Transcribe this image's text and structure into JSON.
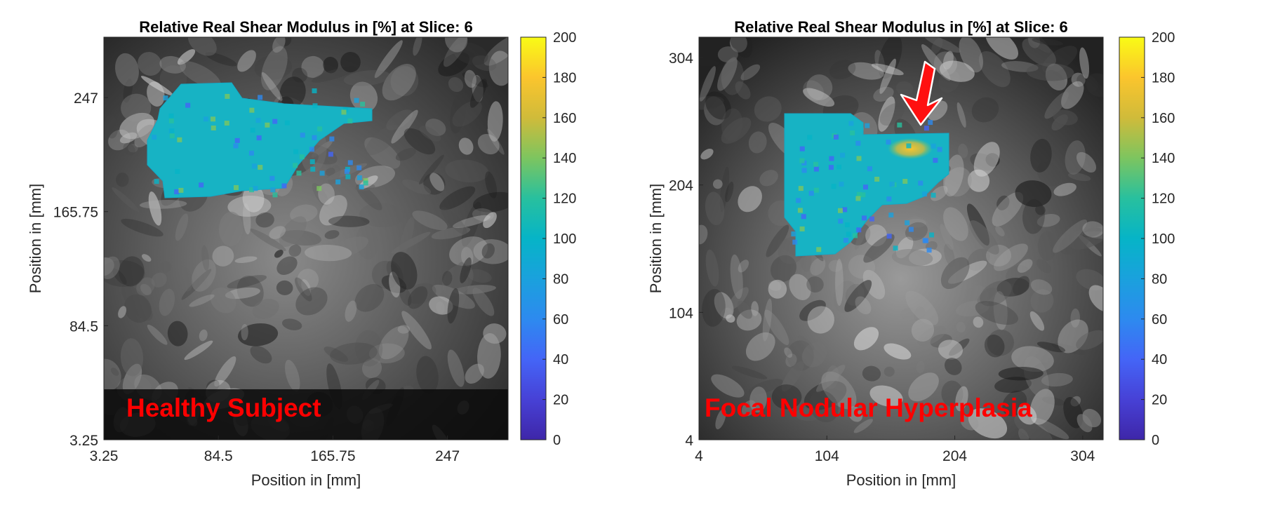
{
  "chart_data": [
    {
      "type": "heatmap",
      "title": "Relative Real Shear Modulus in [%] at Slice: 6",
      "xlabel": "Position in [mm]",
      "ylabel": "Position in [mm]",
      "xlim": [
        3.25,
        290
      ],
      "ylim": [
        3.25,
        290
      ],
      "xticks": [
        3.25,
        84.5,
        165.75,
        247
      ],
      "xtick_labels": [
        "3.25",
        "84.5",
        "165.75",
        "247"
      ],
      "yticks": [
        3.25,
        84.5,
        165.75,
        247
      ],
      "ytick_labels": [
        "3.25",
        "84.5",
        "165.75",
        "247"
      ],
      "colorbar": {
        "range": [
          0,
          200
        ],
        "ticks": [
          0,
          20,
          40,
          60,
          80,
          100,
          120,
          140,
          160,
          180,
          200
        ],
        "tick_labels": [
          "0",
          "20",
          "40",
          "60",
          "80",
          "100",
          "120",
          "140",
          "160",
          "180",
          "200"
        ],
        "colormap": "parula"
      },
      "overlay_mean_value": 100,
      "annotation": "Healthy Subject",
      "annotation_color": "#ff0000"
    },
    {
      "type": "heatmap",
      "title": "Relative Real Shear Modulus in [%] at Slice: 6",
      "xlabel": "Position in [mm]",
      "ylabel": "Position in [mm]",
      "xlim": [
        4,
        320
      ],
      "ylim": [
        4,
        320
      ],
      "xticks": [
        4,
        104,
        204,
        304
      ],
      "xtick_labels": [
        "4",
        "104",
        "204",
        "304"
      ],
      "yticks": [
        4,
        104,
        204,
        304
      ],
      "ytick_labels": [
        "4",
        "104",
        "204",
        "304"
      ],
      "colorbar": {
        "range": [
          0,
          200
        ],
        "ticks": [
          0,
          20,
          40,
          60,
          80,
          100,
          120,
          140,
          160,
          180,
          200
        ],
        "tick_labels": [
          "0",
          "20",
          "40",
          "60",
          "80",
          "100",
          "120",
          "140",
          "160",
          "180",
          "200"
        ],
        "colormap": "parula"
      },
      "overlay_mean_value": 100,
      "hotspot_value": 165,
      "annotation": "Focal Nodular Hyperplasia",
      "annotation_color": "#ff0000",
      "arrow_color": "#ff0000"
    }
  ]
}
